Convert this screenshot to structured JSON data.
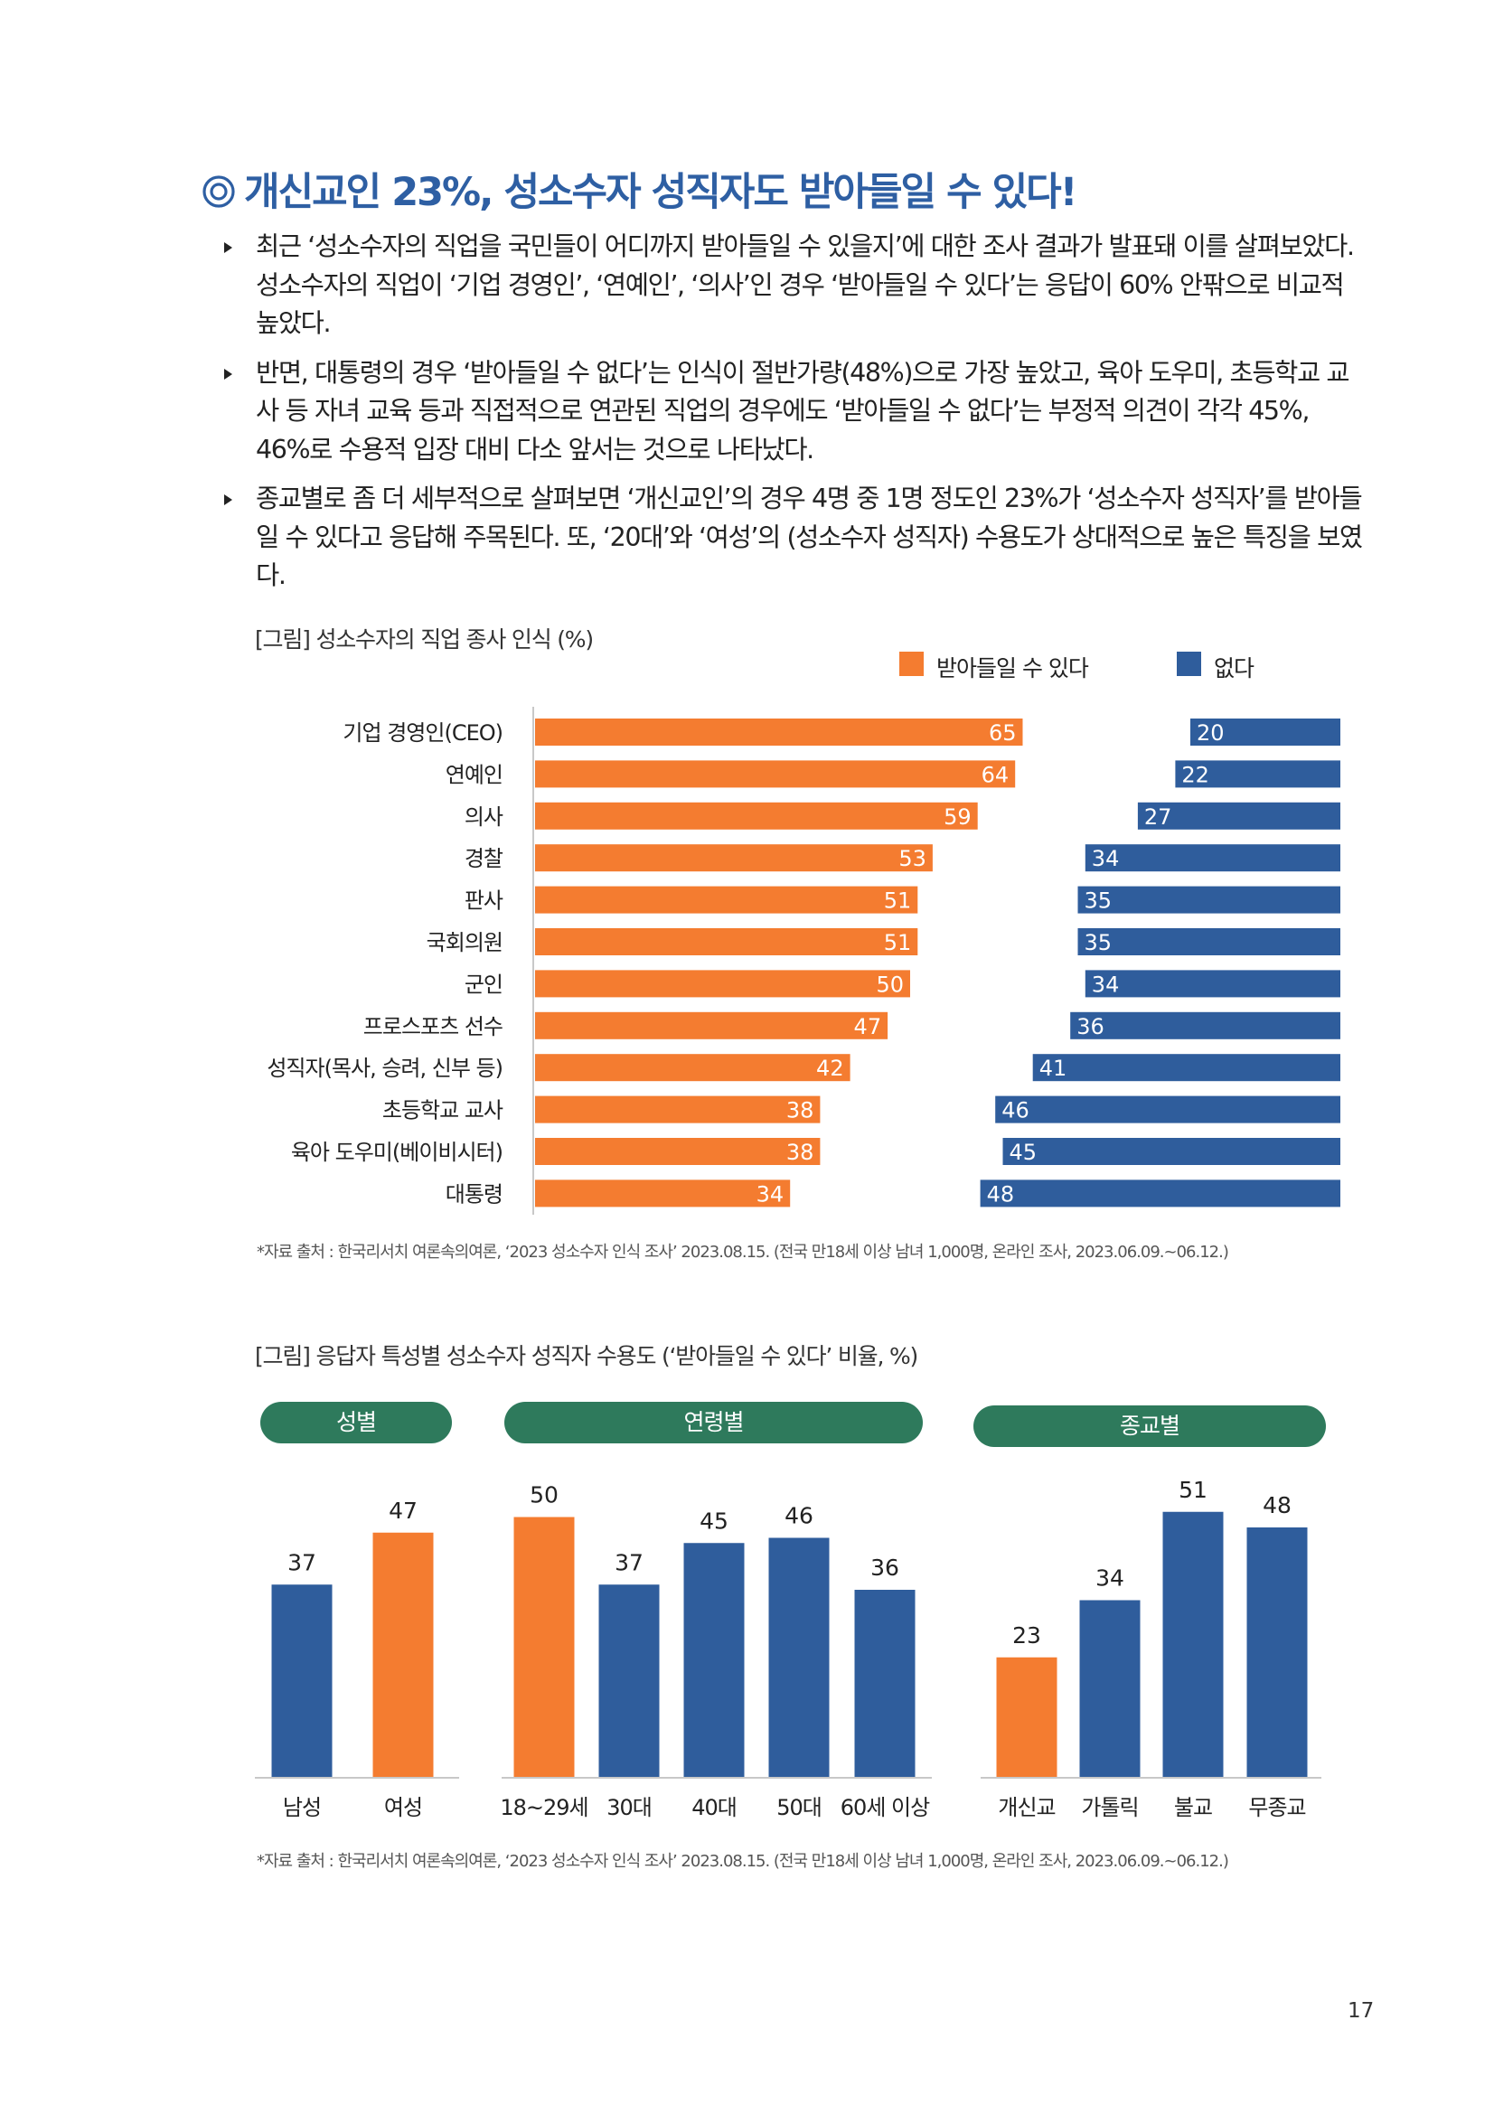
{
  "title": "개신교인 23%, 성소수자 성직자도 받아들일 수 있다!",
  "paragraphs": [
    "최근 ‘성소수자의 직업을 국민들이 어디까지 받아들일 수 있을지’에 대한 조사 결과가 발표돼 이를 살펴보았다. 성소수자의 직업이 ‘기업 경영인’, ‘연예인’, ‘의사’인 경우 ‘받아들일 수 있다’는 응답이 60% 안팎으로 비교적 높았다.",
    "반면, 대통령의 경우 ‘받아들일 수 없다’는 인식이 절반가량(48%)으로 가장 높았고, 육아 도우미, 초등학교 교사 등 자녀 교육 등과 직접적으로 연관된 직업의 경우에도 ‘받아들일 수 없다’는 부정적 의견이 각각 45%, 46%로 수용적 입장 대비 다소 앞서는 것으로 나타났다.",
    "종교별로 좀 더 세부적으로 살펴보면 ‘개신교인’의 경우 4명 중 1명 정도인 23%가 ‘성소수자 성직자’를 받아들일 수 있다고 응답해 주목된다. 또, ‘20대’와 ‘여성’의 (성소수자 성직자) 수용도가 상대적으로 높은 특징을 보였다."
  ],
  "colors": {
    "accept": "#f47c30",
    "reject": "#2f5d9c",
    "pill": "#2e7a5c",
    "title": "#2e5fa3"
  },
  "chart_data": [
    {
      "type": "bar",
      "orientation": "horizontal-diverging",
      "title": "[그림] 성소수자의 직업 종사 인식 (%)",
      "legend": {
        "position": "top-right"
      },
      "categories": [
        "기업 경영인(CEO)",
        "연예인",
        "의사",
        "경찰",
        "판사",
        "국회의원",
        "군인",
        "프로스포츠 선수",
        "성직자(목사, 승려, 신부 등)",
        "초등학교 교사",
        "육아 도우미(베이비시터)",
        "대통령"
      ],
      "series": [
        {
          "name": "받아들일 수 있다",
          "color": "#f47c30",
          "values": [
            65,
            64,
            59,
            53,
            51,
            51,
            50,
            47,
            42,
            38,
            38,
            34
          ]
        },
        {
          "name": "없다",
          "color": "#2f5d9c",
          "values": [
            20,
            22,
            27,
            34,
            35,
            35,
            34,
            36,
            41,
            46,
            45,
            48
          ]
        }
      ],
      "source": "*자료 출처 : 한국리서치 여론속의여론, ‘2023 성소수자 인식 조사’ 2023.08.15. (전국 만18세 이상 남녀 1,000명, 온라인 조사, 2023.06.09.~06.12.)"
    },
    {
      "type": "bar",
      "title": "[그림] 응답자 특성별 성소수자 성직자 수용도 (‘받아들일 수 있다’ 비율, %)",
      "groups": [
        {
          "label": "성별",
          "categories": [
            "남성",
            "여성"
          ],
          "values": [
            37,
            47
          ],
          "colors": [
            "#2f5d9c",
            "#f47c30"
          ]
        },
        {
          "label": "연령별",
          "categories": [
            "18~29세",
            "30대",
            "40대",
            "50대",
            "60세 이상"
          ],
          "values": [
            50,
            37,
            45,
            46,
            36
          ],
          "colors": [
            "#f47c30",
            "#2f5d9c",
            "#2f5d9c",
            "#2f5d9c",
            "#2f5d9c"
          ]
        },
        {
          "label": "종교별",
          "categories": [
            "개신교",
            "가톨릭",
            "불교",
            "무종교"
          ],
          "values": [
            23,
            34,
            51,
            48
          ],
          "colors": [
            "#f47c30",
            "#2f5d9c",
            "#2f5d9c",
            "#2f5d9c"
          ]
        }
      ],
      "source": "*자료 출처 : 한국리서치 여론속의여론, ‘2023 성소수자 인식 조사’ 2023.08.15. (전국 만18세 이상 남녀 1,000명, 온라인 조사, 2023.06.09.~06.12.)"
    }
  ],
  "page_number": "17"
}
